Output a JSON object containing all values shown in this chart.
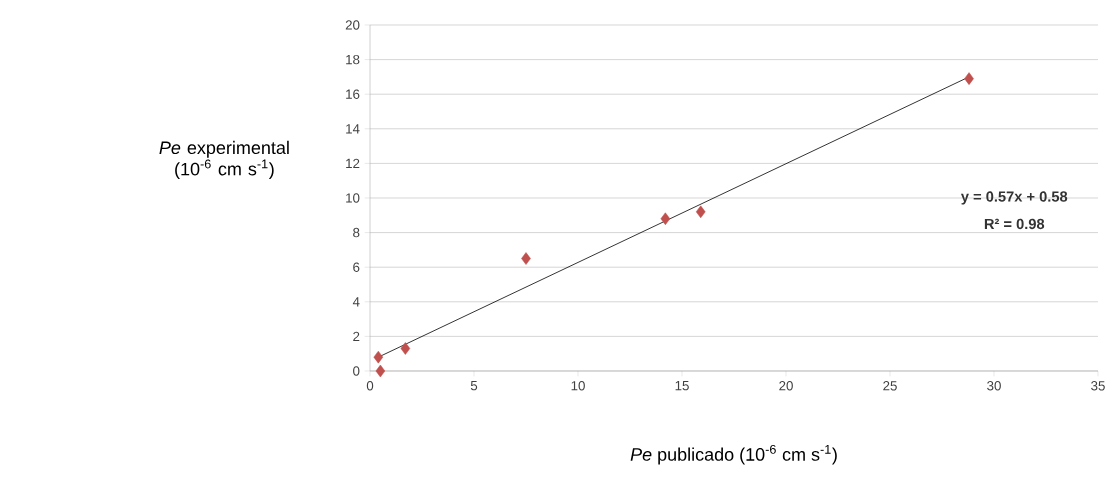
{
  "chart_data": {
    "type": "scatter",
    "xlabel": "*Pe* publicado (10$^{-6}$ cm s$^{-1}$)",
    "ylabel": "*Pe* experimental (10$^{-6}$ cm s$^{-1}$)",
    "series": [
      {
        "color": "#c0504d",
        "marker": "diamond",
        "x": [
          0.4,
          0.5,
          1.7,
          7.5,
          14.2,
          15.9,
          28.8
        ],
        "values": [
          0.8,
          0.0,
          1.3,
          6.5,
          8.8,
          9.2,
          16.9
        ]
      },
      {
        "type": "line",
        "color": "#000000",
        "marker": "none",
        "x": [
          0.4,
          28.8
        ],
        "values": [
          0.8,
          17.0
        ]
      }
    ],
    "xlim": [
      0,
      35
    ],
    "xticks": [
      0,
      5,
      10,
      15,
      20,
      25,
      30,
      35
    ],
    "ylim": [
      0,
      20
    ],
    "yticks": [
      0,
      2,
      4,
      6,
      8,
      10,
      12,
      14,
      16,
      18,
      20
    ],
    "grid": "y",
    "annotations": [
      "y = 0.57x + 0.58",
      "R² = 0.98"
    ]
  }
}
